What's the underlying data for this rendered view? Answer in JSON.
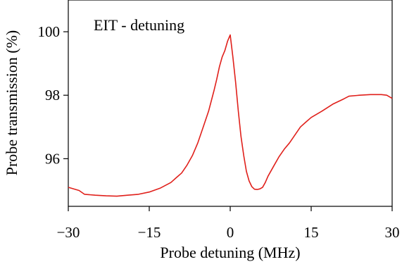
{
  "chart_data": {
    "type": "line",
    "title": "",
    "annotation": "EIT - detuning",
    "xlabel": "Probe detuning (MHz)",
    "ylabel": "Probe transmission (%)",
    "xlim": [
      -30,
      30
    ],
    "ylim": [
      94.5,
      101
    ],
    "x_ticks": [
      -30,
      -15,
      0,
      15,
      30
    ],
    "x_tick_labels": [
      "−30",
      "−15",
      "0",
      "15",
      "30"
    ],
    "y_ticks": [
      96,
      98,
      100
    ],
    "y_tick_labels": [
      "96",
      "98",
      "100"
    ],
    "grid": false,
    "legend": "none",
    "series": [
      {
        "color": "#e0201b",
        "x": [
          -30,
          -28,
          -27,
          -25,
          -23,
          -21,
          -19,
          -17,
          -15,
          -13,
          -11,
          -10,
          -9,
          -8,
          -7,
          -6,
          -5,
          -4,
          -3,
          -2.5,
          -2,
          -1.5,
          -1,
          -0.5,
          0,
          0.5,
          1,
          1.5,
          2,
          2.5,
          3,
          3.5,
          4,
          4.5,
          5,
          5.5,
          6,
          6.5,
          7,
          8,
          9,
          10,
          11,
          12,
          13,
          14,
          15,
          17,
          19,
          21,
          22,
          24,
          26,
          28,
          29,
          30
        ],
        "y": [
          95.1,
          95.0,
          94.88,
          94.85,
          94.83,
          94.82,
          94.85,
          94.88,
          94.95,
          95.07,
          95.25,
          95.4,
          95.55,
          95.8,
          96.1,
          96.5,
          97.0,
          97.5,
          98.15,
          98.5,
          98.9,
          99.2,
          99.4,
          99.7,
          99.9,
          99.2,
          98.4,
          97.5,
          96.7,
          96.1,
          95.6,
          95.3,
          95.12,
          95.04,
          95.03,
          95.05,
          95.1,
          95.25,
          95.45,
          95.75,
          96.05,
          96.3,
          96.5,
          96.75,
          97.0,
          97.15,
          97.3,
          97.5,
          97.72,
          97.88,
          97.97,
          98.0,
          98.02,
          98.02,
          98.0,
          97.9
        ]
      }
    ]
  }
}
